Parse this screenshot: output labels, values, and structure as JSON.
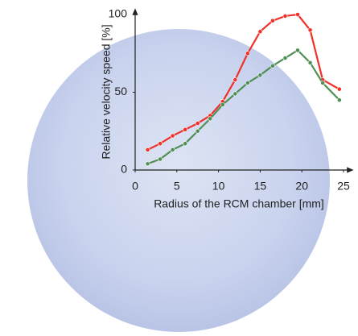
{
  "chart_data": {
    "type": "line",
    "x_label": "Radius of the RCM chamber [mm]",
    "y_label": "Relative velocity speed [%]",
    "x": [
      1.5,
      3,
      4.5,
      6,
      7.5,
      9,
      10.5,
      12,
      13.5,
      15,
      16.5,
      18,
      19.5,
      21,
      22.5,
      24.5
    ],
    "series": [
      {
        "color": "#f0302a",
        "values": [
          13,
          17,
          22,
          26,
          30,
          35,
          44,
          58,
          75,
          89,
          96,
          99,
          100,
          90,
          58,
          52
        ]
      },
      {
        "color": "#4f8f55",
        "values": [
          4,
          7,
          13,
          17,
          25,
          33,
          42,
          49,
          56,
          61,
          67,
          72,
          77,
          69,
          56,
          45
        ]
      }
    ],
    "xlim": [
      0,
      25
    ],
    "xticks": [
      0,
      5,
      10,
      15,
      20,
      25
    ],
    "ylim": [
      0,
      100
    ],
    "yticks": [
      0,
      50,
      100
    ]
  }
}
